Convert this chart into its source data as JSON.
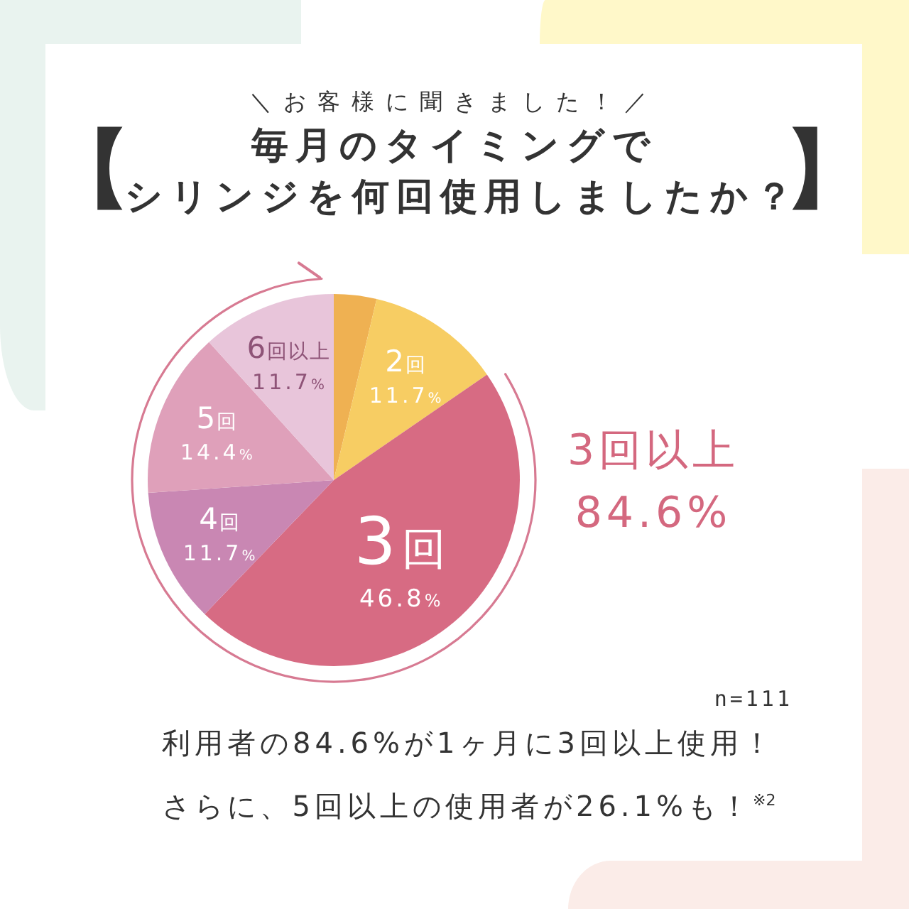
{
  "chart_data": {
    "type": "pie",
    "subtitle": "＼お客様に聞きました！／",
    "title": "【毎月のタイミングでシリンジを何回使用しましたか？】",
    "categories": [
      null,
      "2回",
      "3回",
      "4回",
      "5回",
      "6回以上"
    ],
    "values": [
      3.7,
      11.7,
      46.8,
      11.7,
      14.4,
      11.7
    ],
    "colors": [
      "#efb152",
      "#f7cd63",
      "#d76b83",
      "#c987b3",
      "#dfa0ba",
      "#e8c5da"
    ],
    "value_labels": [
      null,
      "11.7%",
      "46.8%",
      "11.7%",
      "14.4%",
      "11.7%"
    ],
    "annotations": [
      "3回以上\n84.6%",
      "n=111",
      "利用者の84.6%が1ヶ月に3回以上使用！",
      "さらに、5回以上の使用者が26.1%も！$^{※2}$"
    ]
  }
}
